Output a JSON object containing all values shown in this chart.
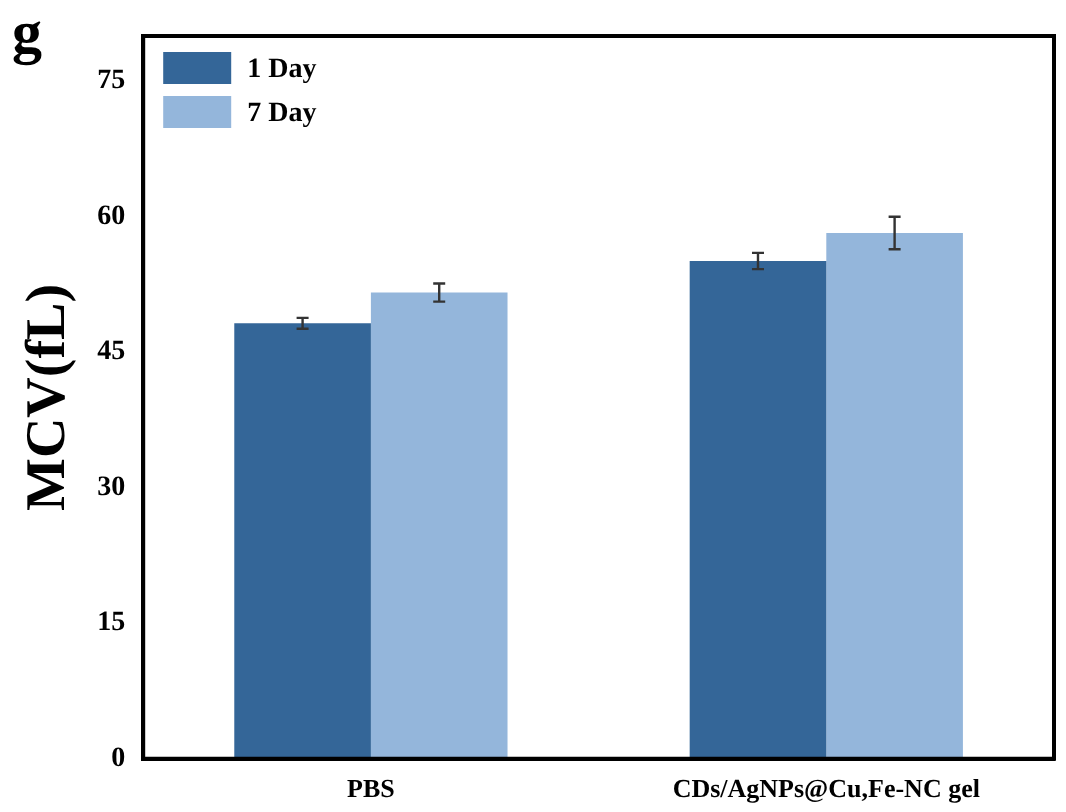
{
  "chart_data": {
    "type": "bar",
    "ylabel": "MCV(fL)",
    "annotations": [
      "g"
    ],
    "categories": [
      "PBS",
      "CDs/AgNPs@Cu,Fe-NC gel"
    ],
    "series": [
      {
        "name": "1 Day",
        "color": "#346698",
        "values": [
          48.2,
          55.1
        ],
        "errors": [
          0.6,
          0.9
        ]
      },
      {
        "name": "7 Day",
        "color": "#94b6db",
        "values": [
          51.6,
          58.2
        ],
        "errors": [
          1.0,
          1.8
        ]
      }
    ],
    "ylim": [
      0,
      80
    ],
    "yticks": [
      0,
      15,
      30,
      45,
      60,
      75
    ],
    "grid": false,
    "legend": "top left"
  }
}
